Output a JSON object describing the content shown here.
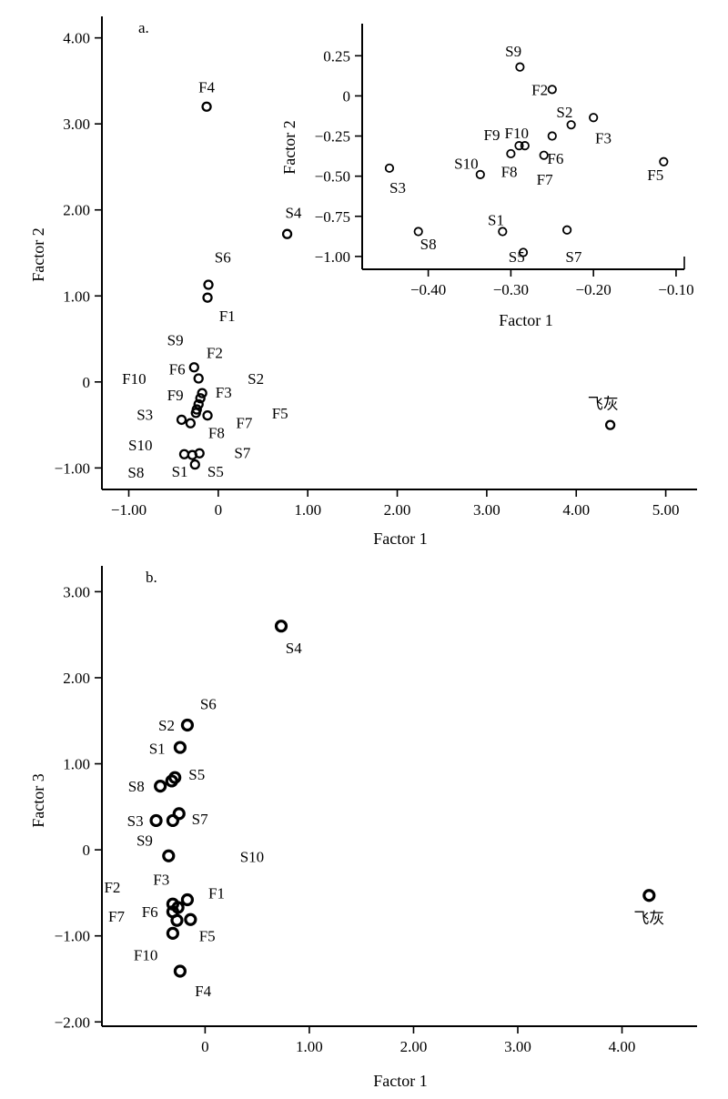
{
  "chart_data": [
    {
      "id": "a",
      "type": "scatter",
      "panel_label": "a.",
      "xlabel": "Factor 1",
      "ylabel": "Factor 2",
      "xlim": [
        -1.3,
        5.35
      ],
      "ylim": [
        -1.25,
        4.25
      ],
      "xticks": [
        -1,
        0,
        1,
        2,
        3,
        4,
        5
      ],
      "xtick_labels": [
        "−1.00",
        "0",
        "1.00",
        "2.00",
        "3.00",
        "4.00",
        "5.00"
      ],
      "yticks": [
        -1,
        0,
        1,
        2,
        3,
        4
      ],
      "ytick_labels": [
        "−1.00",
        "0",
        "1.00",
        "2.00",
        "3.00",
        "4.00"
      ],
      "points": [
        {
          "x": -0.13,
          "y": 3.2
        },
        {
          "x": 0.77,
          "y": 1.72
        },
        {
          "x": -0.11,
          "y": 1.13
        },
        {
          "x": -0.12,
          "y": 0.98
        },
        {
          "x": -0.27,
          "y": 0.17
        },
        {
          "x": -0.22,
          "y": 0.04
        },
        {
          "x": -0.18,
          "y": -0.13
        },
        {
          "x": -0.2,
          "y": -0.19
        },
        {
          "x": -0.22,
          "y": -0.26
        },
        {
          "x": -0.24,
          "y": -0.32
        },
        {
          "x": -0.25,
          "y": -0.36
        },
        {
          "x": -0.12,
          "y": -0.39
        },
        {
          "x": -0.41,
          "y": -0.44
        },
        {
          "x": -0.31,
          "y": -0.48
        },
        {
          "x": -0.38,
          "y": -0.84
        },
        {
          "x": -0.29,
          "y": -0.85
        },
        {
          "x": -0.21,
          "y": -0.83
        },
        {
          "x": -0.26,
          "y": -0.96
        },
        {
          "x": 4.38,
          "y": -0.5
        }
      ],
      "labels": [
        {
          "text": "F4",
          "x": -0.13,
          "y": 3.43
        },
        {
          "text": "S4",
          "x": 0.84,
          "y": 1.97
        },
        {
          "text": "S6",
          "x": 0.05,
          "y": 1.45
        },
        {
          "text": "F1",
          "x": 0.1,
          "y": 0.77
        },
        {
          "text": "S9",
          "x": -0.48,
          "y": 0.49
        },
        {
          "text": "F2",
          "x": -0.04,
          "y": 0.34
        },
        {
          "text": "F10",
          "x": -0.94,
          "y": 0.04
        },
        {
          "text": "F6",
          "x": -0.46,
          "y": 0.15
        },
        {
          "text": "S2",
          "x": 0.42,
          "y": 0.04
        },
        {
          "text": "F9",
          "x": -0.48,
          "y": -0.15
        },
        {
          "text": "F3",
          "x": 0.06,
          "y": -0.12
        },
        {
          "text": "S3",
          "x": -0.82,
          "y": -0.38
        },
        {
          "text": "F5",
          "x": 0.69,
          "y": -0.36
        },
        {
          "text": "F7",
          "x": 0.29,
          "y": -0.47
        },
        {
          "text": "F8",
          "x": -0.02,
          "y": -0.59
        },
        {
          "text": "S10",
          "x": -0.87,
          "y": -0.73
        },
        {
          "text": "S7",
          "x": 0.27,
          "y": -0.82
        },
        {
          "text": "S8",
          "x": -0.92,
          "y": -1.05
        },
        {
          "text": "S1",
          "x": -0.43,
          "y": -1.04
        },
        {
          "text": "S5",
          "x": -0.03,
          "y": -1.04
        },
        {
          "text": "飞灰",
          "x": 4.3,
          "y": -0.25
        }
      ]
    },
    {
      "id": "a-inset",
      "type": "scatter",
      "xlabel": "Factor 1",
      "ylabel": "Factor 2",
      "xlim": [
        -0.48,
        -0.09
      ],
      "ylim": [
        -1.08,
        0.45
      ],
      "xticks": [
        -0.4,
        -0.3,
        -0.2,
        -0.1
      ],
      "xtick_labels": [
        "−0.40",
        "−0.30",
        "−0.20",
        "−0.10"
      ],
      "yticks": [
        0.25,
        0,
        -0.25,
        -0.5,
        -0.75,
        -1.0
      ],
      "ytick_labels": [
        "0.25",
        "0",
        "−0.25",
        "−0.50",
        "−0.75",
        "−1.00"
      ],
      "points": [
        {
          "x": -0.289,
          "y": 0.18
        },
        {
          "x": -0.25,
          "y": 0.04
        },
        {
          "x": -0.2,
          "y": -0.135
        },
        {
          "x": -0.227,
          "y": -0.18
        },
        {
          "x": -0.25,
          "y": -0.25
        },
        {
          "x": -0.29,
          "y": -0.31
        },
        {
          "x": -0.283,
          "y": -0.31
        },
        {
          "x": -0.3,
          "y": -0.36
        },
        {
          "x": -0.26,
          "y": -0.37
        },
        {
          "x": -0.337,
          "y": -0.49
        },
        {
          "x": -0.447,
          "y": -0.45
        },
        {
          "x": -0.115,
          "y": -0.41
        },
        {
          "x": -0.31,
          "y": -0.845
        },
        {
          "x": -0.232,
          "y": -0.835
        },
        {
          "x": -0.412,
          "y": -0.845
        },
        {
          "x": -0.285,
          "y": -0.975
        }
      ],
      "labels": [
        {
          "text": "S9",
          "x": -0.297,
          "y": 0.28
        },
        {
          "text": "F2",
          "x": -0.265,
          "y": 0.04
        },
        {
          "text": "S2",
          "x": -0.235,
          "y": -0.1
        },
        {
          "text": "F3",
          "x": -0.188,
          "y": -0.26
        },
        {
          "text": "F9",
          "x": -0.323,
          "y": -0.24
        },
        {
          "text": "F10",
          "x": -0.293,
          "y": -0.23
        },
        {
          "text": "F6",
          "x": -0.246,
          "y": -0.39
        },
        {
          "text": "S10",
          "x": -0.354,
          "y": -0.42
        },
        {
          "text": "F8",
          "x": -0.302,
          "y": -0.47
        },
        {
          "text": "F7",
          "x": -0.259,
          "y": -0.52
        },
        {
          "text": "S3",
          "x": -0.437,
          "y": -0.57
        },
        {
          "text": "F5",
          "x": -0.125,
          "y": -0.49
        },
        {
          "text": "S1",
          "x": -0.318,
          "y": -0.77
        },
        {
          "text": "S8",
          "x": -0.4,
          "y": -0.92
        },
        {
          "text": "S5",
          "x": -0.293,
          "y": -1.0
        },
        {
          "text": "S7",
          "x": -0.224,
          "y": -1.0
        }
      ]
    },
    {
      "id": "b",
      "type": "scatter",
      "panel_label": "b.",
      "xlabel": "Factor 1",
      "ylabel": "Factor 3",
      "xlim": [
        -0.99,
        4.72
      ],
      "ylim": [
        -2.05,
        3.3
      ],
      "xticks": [
        0,
        1,
        2,
        3,
        4
      ],
      "xtick_labels": [
        "0",
        "1.00",
        "2.00",
        "3.00",
        "4.00"
      ],
      "yticks": [
        -2,
        -1,
        0,
        1,
        2,
        3
      ],
      "ytick_labels": [
        "−2.00",
        "−1.00",
        "0",
        "1.00",
        "2.00",
        "3.00"
      ],
      "points": [
        {
          "x": 0.73,
          "y": 2.6
        },
        {
          "x": -0.17,
          "y": 1.45
        },
        {
          "x": -0.24,
          "y": 1.19
        },
        {
          "x": -0.32,
          "y": 0.8
        },
        {
          "x": -0.29,
          "y": 0.84
        },
        {
          "x": -0.43,
          "y": 0.74
        },
        {
          "x": -0.25,
          "y": 0.42
        },
        {
          "x": -0.31,
          "y": 0.34
        },
        {
          "x": -0.47,
          "y": 0.34
        },
        {
          "x": -0.35,
          "y": -0.07
        },
        {
          "x": -0.17,
          "y": -0.58
        },
        {
          "x": -0.31,
          "y": -0.63
        },
        {
          "x": -0.26,
          "y": -0.67
        },
        {
          "x": -0.31,
          "y": -0.72
        },
        {
          "x": -0.27,
          "y": -0.82
        },
        {
          "x": -0.14,
          "y": -0.81
        },
        {
          "x": -0.31,
          "y": -0.97
        },
        {
          "x": -0.24,
          "y": -1.41
        },
        {
          "x": 4.26,
          "y": -0.53
        }
      ],
      "labels": [
        {
          "text": "S4",
          "x": 0.85,
          "y": 2.35
        },
        {
          "text": "S6",
          "x": 0.03,
          "y": 1.7
        },
        {
          "text": "S2",
          "x": -0.37,
          "y": 1.45
        },
        {
          "text": "S1",
          "x": -0.46,
          "y": 1.18
        },
        {
          "text": "S8",
          "x": -0.66,
          "y": 0.74
        },
        {
          "text": "S5",
          "x": -0.08,
          "y": 0.88
        },
        {
          "text": "S3",
          "x": -0.67,
          "y": 0.34
        },
        {
          "text": "S7",
          "x": -0.05,
          "y": 0.36
        },
        {
          "text": "S9",
          "x": -0.58,
          "y": 0.11
        },
        {
          "text": "S10",
          "x": 0.45,
          "y": -0.08
        },
        {
          "text": "F3",
          "x": -0.42,
          "y": -0.34
        },
        {
          "text": "F2",
          "x": -0.89,
          "y": -0.43
        },
        {
          "text": "F1",
          "x": 0.11,
          "y": -0.5
        },
        {
          "text": "F7",
          "x": -0.85,
          "y": -0.77
        },
        {
          "text": "F6",
          "x": -0.53,
          "y": -0.72
        },
        {
          "text": "F5",
          "x": 0.02,
          "y": -1.0
        },
        {
          "text": "F10",
          "x": -0.57,
          "y": -1.22
        },
        {
          "text": "F4",
          "x": -0.02,
          "y": -1.64
        },
        {
          "text": "飞灰",
          "x": 4.26,
          "y": -0.79
        }
      ]
    }
  ]
}
